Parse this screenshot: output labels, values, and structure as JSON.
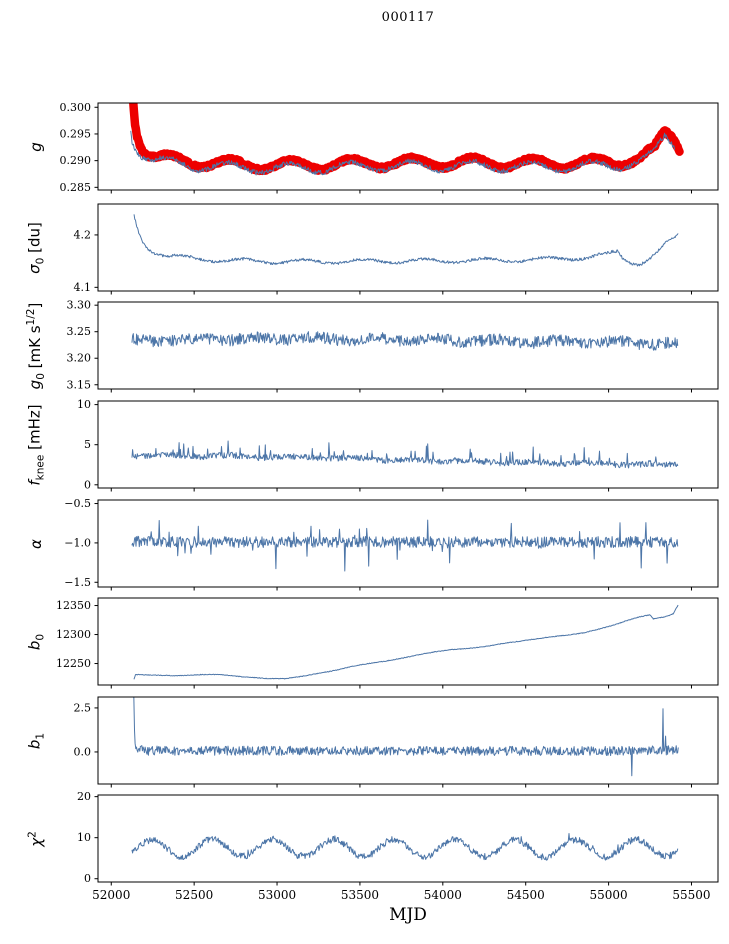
{
  "chart_data": {
    "type": "line",
    "title": "000117",
    "xlabel": "MJD",
    "colors": {
      "line": "#4d76a8",
      "band": "#ed0000",
      "axis": "#000000",
      "background": "#ffffff"
    },
    "x_axis": {
      "lim": [
        51920,
        55660
      ],
      "ticks": [
        52000,
        52500,
        53000,
        53500,
        54000,
        54500,
        55000,
        55500
      ],
      "tick_labels": [
        "52000",
        "52500",
        "53000",
        "53500",
        "54000",
        "54500",
        "55000",
        "55500"
      ]
    },
    "panels": [
      {
        "name": "g",
        "ylabel_parts": [
          {
            "t": "g",
            "it": true
          }
        ],
        "ylim": [
          0.2845,
          0.3008
        ],
        "yticks": [
          0.285,
          0.29,
          0.295,
          0.3
        ],
        "ytick_labels": [
          "0.285",
          "0.290",
          "0.295",
          "0.300"
        ],
        "series": [
          {
            "name": "g-band",
            "style": "band",
            "color": "#ed0000",
            "band_halfwidth": 0.0008,
            "noise": 0.00028,
            "dt": 4,
            "osc": {
              "amp": 0.0009,
              "period": 365,
              "tmax": 52355
            },
            "x_range": [
              52128,
              55430
            ],
            "keypoints": [
              [
                52128,
                0.3035
              ],
              [
                52140,
                0.2985
              ],
              [
                52155,
                0.2955
              ],
              [
                52175,
                0.2935
              ],
              [
                52210,
                0.2917
              ],
              [
                52260,
                0.2907
              ],
              [
                52350,
                0.2902
              ],
              [
                52500,
                0.2897
              ],
              [
                52800,
                0.2892
              ],
              [
                53200,
                0.2892
              ],
              [
                53700,
                0.2896
              ],
              [
                54200,
                0.2896
              ],
              [
                54700,
                0.2894
              ],
              [
                55050,
                0.2897
              ],
              [
                55200,
                0.2906
              ],
              [
                55280,
                0.292
              ],
              [
                55340,
                0.2952
              ],
              [
                55390,
                0.2944
              ],
              [
                55430,
                0.2924
              ]
            ]
          },
          {
            "name": "g-line",
            "style": "line",
            "color": "#4d76a8",
            "noise": 0.00045,
            "dt": 4,
            "osc": {
              "amp": 0.0009,
              "period": 365,
              "tmax": 52345
            },
            "x_range": [
              52118,
              55400
            ],
            "keypoints": [
              [
                52118,
                0.2958
              ],
              [
                52126,
                0.2942
              ],
              [
                52140,
                0.293
              ],
              [
                52160,
                0.292
              ],
              [
                52200,
                0.291
              ],
              [
                52260,
                0.2901
              ],
              [
                52350,
                0.2896
              ],
              [
                52500,
                0.2891
              ],
              [
                52800,
                0.2886
              ],
              [
                53200,
                0.2886
              ],
              [
                53700,
                0.289
              ],
              [
                54200,
                0.289
              ],
              [
                54700,
                0.2888
              ],
              [
                55050,
                0.2891
              ],
              [
                55200,
                0.29
              ],
              [
                55280,
                0.2914
              ],
              [
                55340,
                0.2946
              ],
              [
                55400,
                0.2928
              ]
            ]
          }
        ]
      },
      {
        "name": "sigma0",
        "ylabel_parts": [
          {
            "t": "σ",
            "it": true
          },
          {
            "t": "0",
            "sub": true
          },
          {
            "t": " [du]"
          }
        ],
        "ylim": [
          4.093,
          4.259
        ],
        "yticks": [
          4.1,
          4.2
        ],
        "ytick_labels": [
          "4.1",
          "4.2"
        ],
        "series": [
          {
            "name": "sigma0-line",
            "style": "line",
            "color": "#4d76a8",
            "noise": 0.0026,
            "dt": 4,
            "osc": {
              "amp": 0.0038,
              "period": 365,
              "tmax": 52430
            },
            "x_range": [
              52138,
              55420
            ],
            "keypoints": [
              [
                52138,
                4.235
              ],
              [
                52150,
                4.222
              ],
              [
                52165,
                4.205
              ],
              [
                52185,
                4.19
              ],
              [
                52215,
                4.178
              ],
              [
                52260,
                4.168
              ],
              [
                52330,
                4.16
              ],
              [
                52450,
                4.156
              ],
              [
                52700,
                4.151
              ],
              [
                53100,
                4.149
              ],
              [
                53600,
                4.15
              ],
              [
                54100,
                4.151
              ],
              [
                54600,
                4.153
              ],
              [
                54900,
                4.158
              ],
              [
                55000,
                4.163
              ],
              [
                55060,
                4.168
              ],
              [
                55085,
                4.155
              ],
              [
                55120,
                4.15
              ],
              [
                55180,
                4.146
              ],
              [
                55240,
                4.153
              ],
              [
                55300,
                4.168
              ],
              [
                55360,
                4.186
              ],
              [
                55420,
                4.199
              ]
            ]
          }
        ]
      },
      {
        "name": "g0",
        "ylabel_parts": [
          {
            "t": "g",
            "it": true
          },
          {
            "t": "0",
            "sub": true
          },
          {
            "t": " [mK s"
          },
          {
            "t": "1/2",
            "sup": true
          },
          {
            "t": "]"
          }
        ],
        "ylim": [
          3.142,
          3.306
        ],
        "yticks": [
          3.15,
          3.2,
          3.25,
          3.3
        ],
        "ytick_labels": [
          "3.15",
          "3.20",
          "3.25",
          "3.30"
        ],
        "series": [
          {
            "name": "g0-line",
            "style": "line",
            "color": "#4d76a8",
            "noise": 0.011,
            "dt": 4,
            "osc": {
              "amp": 0.003,
              "period": 365,
              "tmax": 52500
            },
            "x_range": [
              52125,
              55420
            ],
            "keypoints": [
              [
                52125,
                3.233
              ],
              [
                52700,
                3.236
              ],
              [
                53200,
                3.237
              ],
              [
                53800,
                3.235
              ],
              [
                54400,
                3.232
              ],
              [
                55000,
                3.23
              ],
              [
                55420,
                3.227
              ]
            ]
          }
        ]
      },
      {
        "name": "fknee",
        "ylabel_parts": [
          {
            "t": "f",
            "it": true
          },
          {
            "t": "knee",
            "sub": true
          },
          {
            "t": " [mHz]"
          }
        ],
        "ylim": [
          -0.4,
          10.45
        ],
        "yticks": [
          0,
          5,
          10
        ],
        "ytick_labels": [
          "0",
          "5",
          "10"
        ],
        "series": [
          {
            "name": "fknee-line",
            "style": "line",
            "color": "#4d76a8",
            "noise": 0.38,
            "dt": 4,
            "osc": {
              "amp": 0.12,
              "period": 365,
              "tmax": 52355
            },
            "rand_spikes": {
              "p": 0.07,
              "amp": 0.9,
              "mode": "pos"
            },
            "x_range": [
              52125,
              55420
            ],
            "keypoints": [
              [
                52125,
                3.7
              ],
              [
                52600,
                3.6
              ],
              [
                53100,
                3.45
              ],
              [
                53500,
                3.25
              ],
              [
                53900,
                3.0
              ],
              [
                54300,
                2.85
              ],
              [
                54800,
                2.7
              ],
              [
                55200,
                2.55
              ],
              [
                55420,
                2.5
              ]
            ]
          }
        ]
      },
      {
        "name": "alpha",
        "ylabel_parts": [
          {
            "t": "α",
            "it": true
          }
        ],
        "ylim": [
          -1.56,
          -0.455
        ],
        "yticks": [
          -1.5,
          -1.0,
          -0.5
        ],
        "ytick_labels": [
          "−1.5",
          "−1.0",
          "−0.5"
        ],
        "series": [
          {
            "name": "alpha-line",
            "style": "line",
            "color": "#4d76a8",
            "noise": 0.07,
            "dt": 4,
            "rand_spikes": {
              "p": 0.06,
              "amp": 0.16,
              "mode": "sym"
            },
            "x_range": [
              52125,
              55420
            ],
            "keypoints": [
              [
                52125,
                -0.985
              ],
              [
                53000,
                -0.99
              ],
              [
                54000,
                -0.988
              ],
              [
                55000,
                -0.99
              ],
              [
                55420,
                -0.985
              ]
            ]
          }
        ]
      },
      {
        "name": "b0",
        "ylabel_parts": [
          {
            "t": "b",
            "it": true
          },
          {
            "t": "0",
            "sub": true
          }
        ],
        "ylim": [
          12213,
          12363
        ],
        "yticks": [
          12250,
          12300,
          12350
        ],
        "ytick_labels": [
          "12250",
          "12300",
          "12350"
        ],
        "series": [
          {
            "name": "b0-line",
            "style": "line",
            "color": "#4d76a8",
            "noise": 0.6,
            "dt": 4,
            "x_range": [
              52138,
              55420
            ],
            "keypoints": [
              [
                52138,
                12224
              ],
              [
                52146,
                12231
              ],
              [
                52250,
                12230
              ],
              [
                52400,
                12229
              ],
              [
                52550,
                12231
              ],
              [
                52650,
                12231
              ],
              [
                52800,
                12227
              ],
              [
                52950,
                12224
              ],
              [
                53050,
                12224
              ],
              [
                53150,
                12228
              ],
              [
                53250,
                12233
              ],
              [
                53350,
                12238
              ],
              [
                53450,
                12245
              ],
              [
                53550,
                12250
              ],
              [
                53650,
                12254
              ],
              [
                53750,
                12259
              ],
              [
                53850,
                12265
              ],
              [
                53950,
                12270
              ],
              [
                54050,
                12274
              ],
              [
                54150,
                12276
              ],
              [
                54250,
                12279
              ],
              [
                54350,
                12284
              ],
              [
                54450,
                12288
              ],
              [
                54550,
                12292
              ],
              [
                54650,
                12296
              ],
              [
                54750,
                12299
              ],
              [
                54850,
                12303
              ],
              [
                54950,
                12310
              ],
              [
                55050,
                12318
              ],
              [
                55120,
                12325
              ],
              [
                55180,
                12330
              ],
              [
                55250,
                12334
              ],
              [
                55270,
                12327
              ],
              [
                55310,
                12329
              ],
              [
                55360,
                12332
              ],
              [
                55390,
                12336
              ],
              [
                55405,
                12344
              ],
              [
                55420,
                12351
              ]
            ]
          }
        ]
      },
      {
        "name": "b1",
        "ylabel_parts": [
          {
            "t": "b",
            "it": true
          },
          {
            "t": "1",
            "sub": true
          }
        ],
        "ylim": [
          -1.82,
          3.12
        ],
        "yticks": [
          0.0,
          2.5
        ],
        "ytick_labels": [
          "0.0",
          "2.5"
        ],
        "series": [
          {
            "name": "b1-line",
            "style": "line",
            "color": "#4d76a8",
            "noise": 0.26,
            "dt": 4,
            "x_range": [
              52136,
              55420
            ],
            "spikes": [
              {
                "x": 55140,
                "y": -1.35
              },
              {
                "x": 55328,
                "y": 2.45
              },
              {
                "x": 55344,
                "y": 0.9
              }
            ],
            "keypoints": [
              [
                52136,
                3.0
              ],
              [
                52139,
                1.6
              ],
              [
                52143,
                0.6
              ],
              [
                52150,
                0.2
              ],
              [
                52200,
                0.07
              ],
              [
                53000,
                0.07
              ],
              [
                54000,
                0.06
              ],
              [
                55000,
                0.05
              ],
              [
                55420,
                0.1
              ]
            ]
          }
        ]
      },
      {
        "name": "chi2",
        "ylabel_parts": [
          {
            "t": "χ",
            "it": true
          },
          {
            "t": "2",
            "sup": true
          }
        ],
        "ylim": [
          -0.8,
          20.4
        ],
        "yticks": [
          0,
          10,
          20
        ],
        "ytick_labels": [
          "0",
          "10",
          "20"
        ],
        "series": [
          {
            "name": "chi2-line",
            "style": "line",
            "color": "#4d76a8",
            "noise": 0.8,
            "dt": 4,
            "osc": {
              "amp": 2.1,
              "period": 365,
              "tmax": 52245
            },
            "rand_spikes": {
              "p": 0.03,
              "amp": 0.8,
              "mode": "pos"
            },
            "x_range": [
              52125,
              55420
            ],
            "keypoints": [
              [
                52125,
                7.3
              ],
              [
                52700,
                7.6
              ],
              [
                53400,
                7.4
              ],
              [
                54100,
                7.5
              ],
              [
                54800,
                7.3
              ],
              [
                55420,
                7.6
              ]
            ]
          }
        ]
      }
    ]
  }
}
